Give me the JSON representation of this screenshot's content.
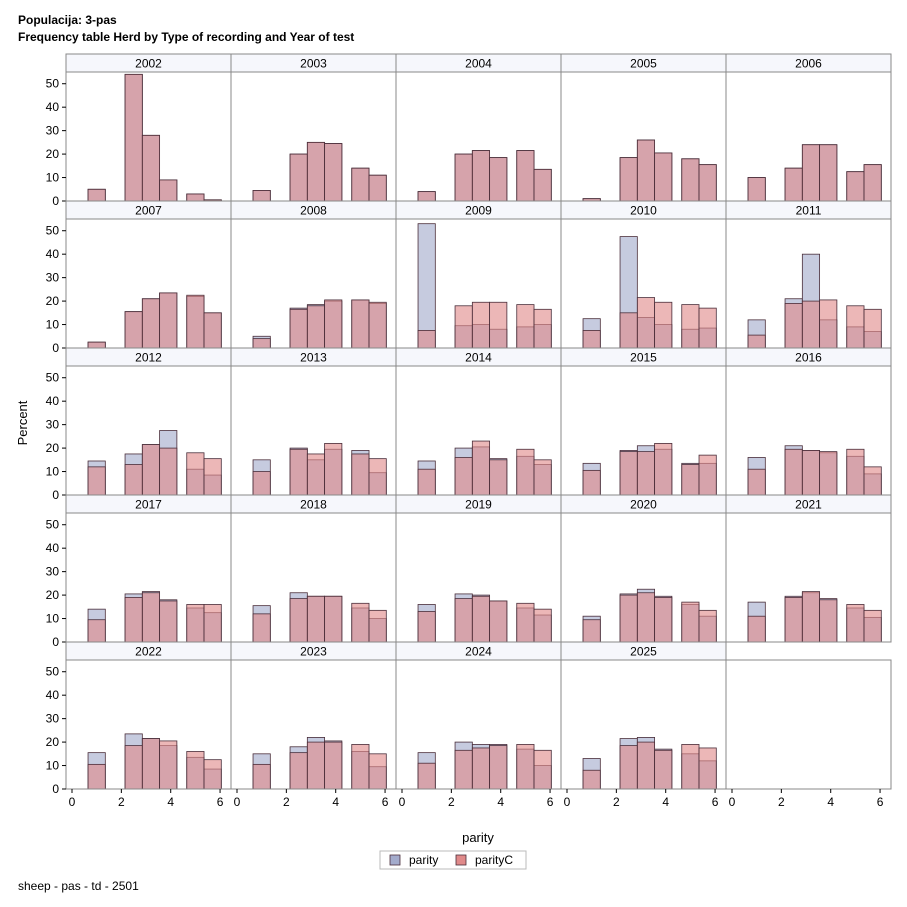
{
  "header": {
    "title": "Populacija: 3-pas",
    "subtitle": "Frequency table Herd by Type of recording and Year of test"
  },
  "footnote": "sheep - pas - td - 2501",
  "colors": {
    "parity": "#a3abcc",
    "parityC": "#e08a8a",
    "overlap": "#c08896",
    "stroke": "#4a2e3a",
    "panel_header_bg": "#f6f7fc",
    "frame": "#888888"
  },
  "chart_data": {
    "type": "bar",
    "title": "Frequency table Herd by Type of recording and Year of test",
    "xlabel": "parity",
    "ylabel": "Percent",
    "ylim": [
      0,
      55
    ],
    "xlim": [
      0,
      6.2
    ],
    "x_ticks": [
      "0",
      "2",
      "4",
      "6"
    ],
    "y_ticks": [
      "0",
      "10",
      "20",
      "30",
      "40",
      "50"
    ],
    "bin_centers": [
      1,
      2.5,
      3.2,
      3.9,
      5,
      5.7
    ],
    "bin_width": 0.7,
    "legend": [
      {
        "name": "parity",
        "color": "#a3abcc"
      },
      {
        "name": "parityC",
        "color": "#e08a8a"
      }
    ],
    "panels": [
      {
        "year": "2002",
        "parity": [
          5,
          54,
          28,
          9,
          3,
          0.5
        ],
        "parityC": [
          5,
          54,
          28,
          9,
          3,
          0.5
        ]
      },
      {
        "year": "2003",
        "parity": [
          4.5,
          20,
          25,
          24.5,
          14,
          11
        ],
        "parityC": [
          4.5,
          20,
          25,
          24.5,
          14,
          11
        ]
      },
      {
        "year": "2004",
        "parity": [
          4,
          20,
          21.5,
          18.5,
          21.5,
          13.5
        ],
        "parityC": [
          4,
          20,
          21.5,
          18.5,
          21.5,
          13.5
        ]
      },
      {
        "year": "2005",
        "parity": [
          1,
          18.5,
          26,
          20.5,
          18,
          15.5
        ],
        "parityC": [
          1,
          18.5,
          26,
          20.5,
          18,
          15.5
        ]
      },
      {
        "year": "2006",
        "parity": [
          10,
          14,
          24,
          24,
          12.5,
          15.5
        ],
        "parityC": [
          10,
          14,
          24,
          24,
          12.5,
          15.5
        ]
      },
      {
        "year": "2007",
        "parity": [
          2.5,
          15.5,
          21,
          23.5,
          22,
          15
        ],
        "parityC": [
          2.5,
          15.5,
          21,
          23.5,
          22.5,
          15
        ]
      },
      {
        "year": "2008",
        "parity": [
          5,
          17,
          18.5,
          20,
          20.5,
          19
        ],
        "parityC": [
          4,
          16.5,
          18,
          20.5,
          20.5,
          19.5
        ]
      },
      {
        "year": "2009",
        "parity": [
          53,
          9.5,
          10,
          8,
          9,
          10
        ],
        "parityC": [
          7.5,
          18,
          19.5,
          19.5,
          18.5,
          16.5
        ]
      },
      {
        "year": "2010",
        "parity": [
          12.5,
          47.5,
          13,
          10,
          8,
          8.5
        ],
        "parityC": [
          7.5,
          15,
          21.5,
          19.5,
          18.5,
          17
        ]
      },
      {
        "year": "2011",
        "parity": [
          12,
          21,
          40,
          12,
          9,
          7
        ],
        "parityC": [
          5.5,
          19,
          20,
          20.5,
          18,
          16.5
        ]
      },
      {
        "year": "2012",
        "parity": [
          14.5,
          17.5,
          21.5,
          27.5,
          11,
          8.5
        ],
        "parityC": [
          12,
          13,
          21.5,
          20,
          18,
          15.5
        ]
      },
      {
        "year": "2013",
        "parity": [
          15,
          20,
          15,
          19.5,
          19,
          9.5
        ],
        "parityC": [
          10,
          19.5,
          17.5,
          22,
          17.5,
          15.5
        ]
      },
      {
        "year": "2014",
        "parity": [
          14.5,
          20,
          20.5,
          15.5,
          16.5,
          13
        ],
        "parityC": [
          11,
          16,
          23,
          15,
          19.5,
          15
        ]
      },
      {
        "year": "2015",
        "parity": [
          13.5,
          19,
          21,
          19.5,
          13.5,
          13.5
        ],
        "parityC": [
          10.5,
          18.5,
          18.5,
          22,
          13,
          17
        ]
      },
      {
        "year": "2016",
        "parity": [
          16,
          21,
          19,
          18,
          16.5,
          9
        ],
        "parityC": [
          11,
          19.5,
          19,
          18.5,
          19.5,
          12
        ]
      },
      {
        "year": "2017",
        "parity": [
          14,
          20.5,
          21.5,
          18,
          14.5,
          12.5
        ],
        "parityC": [
          9.5,
          19,
          21,
          17.5,
          16,
          16
        ]
      },
      {
        "year": "2018",
        "parity": [
          15.5,
          21,
          19.5,
          19.5,
          14.5,
          10
        ],
        "parityC": [
          12,
          18.5,
          19.5,
          19.5,
          16.5,
          13.5
        ]
      },
      {
        "year": "2019",
        "parity": [
          16,
          20.5,
          20,
          17.5,
          14.5,
          11.5
        ],
        "parityC": [
          13,
          18.5,
          19.5,
          17.5,
          16.5,
          14
        ]
      },
      {
        "year": "2020",
        "parity": [
          11,
          20.5,
          22.5,
          19.5,
          16,
          11
        ],
        "parityC": [
          9.5,
          20,
          21,
          19,
          17,
          13.5
        ]
      },
      {
        "year": "2021",
        "parity": [
          17,
          19.5,
          21,
          18.5,
          14.5,
          10.5
        ],
        "parityC": [
          11,
          19,
          21.5,
          18,
          16,
          13.5
        ]
      },
      {
        "year": "2022",
        "parity": [
          15.5,
          23.5,
          21.5,
          18.5,
          13.5,
          8.5
        ],
        "parityC": [
          10.5,
          18.5,
          21.5,
          20.5,
          16,
          12.5
        ]
      },
      {
        "year": "2023",
        "parity": [
          15,
          18,
          22,
          20.5,
          16,
          9.5
        ],
        "parityC": [
          10.5,
          15.5,
          20,
          20,
          19,
          15
        ]
      },
      {
        "year": "2024",
        "parity": [
          15.5,
          20,
          19,
          19,
          17,
          10
        ],
        "parityC": [
          11,
          16.5,
          17.5,
          18.5,
          19,
          16.5
        ]
      },
      {
        "year": "2025",
        "parity": [
          13,
          21.5,
          22,
          17,
          15,
          12
        ],
        "parityC": [
          8,
          18.5,
          20,
          16.5,
          19,
          17.5
        ]
      }
    ]
  }
}
